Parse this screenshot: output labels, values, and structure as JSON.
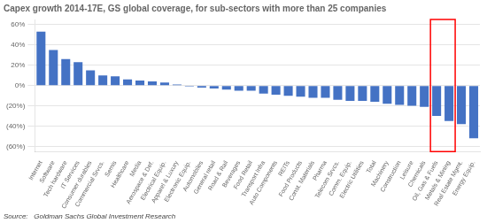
{
  "chart_data": {
    "type": "bar",
    "title": "Capex growth 2014-17E, GS global coverage, for sub-sectors with more than 25 companies",
    "categories": [
      "Internet",
      "Software",
      "Tech hardware",
      "IT Services",
      "Consumer durables",
      "Commercial Srvcs.",
      "Semis",
      "Healthcare",
      "Media",
      "Aerospace & Def.",
      "Electrical Equip.",
      "Apparel & Luxury",
      "Electronic Equip.",
      "Automobiles",
      "General retail",
      "Road & Rail",
      "Beverages",
      "Food Retail",
      "Transport Infra",
      "Auto Components",
      "REITs",
      "Food Products",
      "Const. Materials",
      "Pharma",
      "Telecom Srvcs.",
      "Comm. Equip.",
      "Electric Utilities",
      "Total",
      "Machinery",
      "Construction",
      "Leisure",
      "Chemicals",
      "Oil, Gas & Fuels",
      "Metals & Mining",
      "Real Estate Mgmt.",
      "Energy Equip."
    ],
    "values": [
      53,
      35,
      26,
      23,
      15,
      10,
      9,
      6,
      5,
      4,
      3,
      1,
      -1,
      -2,
      -3,
      -4,
      -5,
      -5,
      -8,
      -9,
      -10,
      -11,
      -12,
      -12,
      -14,
      -15,
      -15,
      -16,
      -18,
      -19,
      -20,
      -21,
      -30,
      -35,
      -38,
      -52
    ],
    "color": "#4472C4",
    "ylim": [
      -65,
      65
    ],
    "yticks": [
      {
        "value": 60,
        "label": "60%"
      },
      {
        "value": 40,
        "label": "40%"
      },
      {
        "value": 20,
        "label": "20%"
      },
      {
        "value": 0,
        "label": "0%"
      },
      {
        "value": -20,
        "label": "(20%)"
      },
      {
        "value": -40,
        "label": "(40%)"
      },
      {
        "value": -60,
        "label": "(60%)"
      }
    ],
    "grid": true,
    "annotations": [
      {
        "type": "box",
        "from": "Oil, Gas & Fuels",
        "to": "Metals & Mining",
        "color": "red"
      },
      {
        "type": "text",
        "text": "Source:   Goldman Sachs Global Investment Research"
      }
    ]
  }
}
